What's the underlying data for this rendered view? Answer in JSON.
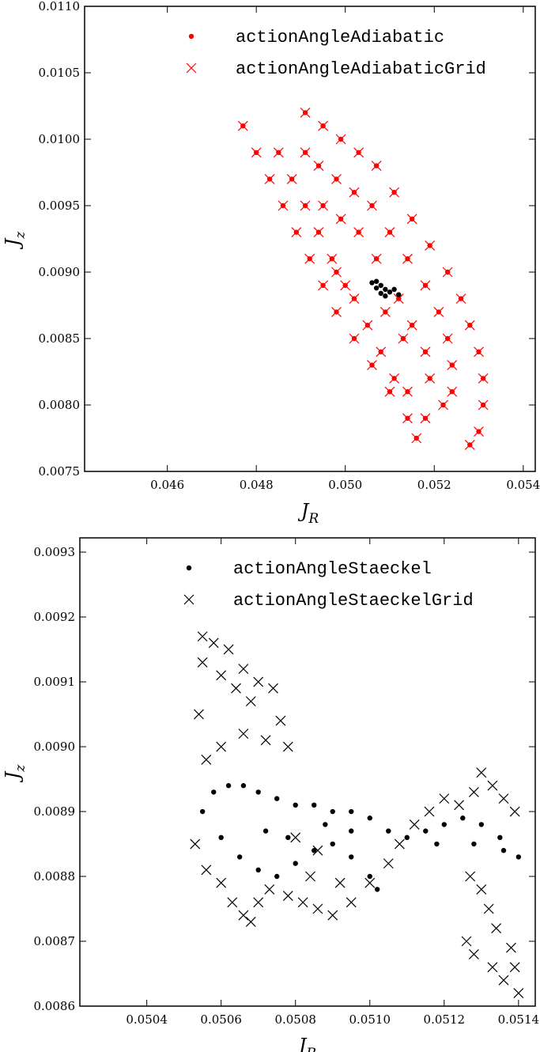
{
  "chart_data": [
    {
      "type": "scatter",
      "xlabel": [
        "J",
        "R"
      ],
      "ylabel": [
        "J",
        "z"
      ],
      "xlim": [
        0.04414,
        0.05427
      ],
      "ylim": [
        0.0075,
        0.011
      ],
      "xticks": [
        0.046,
        0.048,
        {
          "value": 0.05,
          "label": "0.050"
        },
        0.052,
        0.054
      ],
      "yticks": [
        0.0075,
        {
          "value": 0.008,
          "label": "0.0080"
        },
        0.0085,
        {
          "value": 0.009,
          "label": "0.0090"
        },
        0.0095,
        {
          "value": 0.01,
          "label": "0.0100"
        },
        0.0105,
        {
          "value": 0.011,
          "label": "0.0110"
        }
      ],
      "legend": "upper center",
      "series": [
        {
          "name": "actionAngleAdiabatic",
          "color": "#ff0000",
          "marker": "o",
          "x": [
            0.0477,
            0.048,
            0.0483,
            0.0486,
            0.0489,
            0.0492,
            0.0495,
            0.0498,
            0.0502,
            0.0506,
            0.051,
            0.0514,
            0.0516,
            0.0485,
            0.0488,
            0.0491,
            0.0494,
            0.0497,
            0.05,
            0.0491,
            0.0495,
            0.0499,
            0.0503,
            0.0507,
            0.0511,
            0.0515,
            0.0519,
            0.0523,
            0.0526,
            0.0528,
            0.053,
            0.0531,
            0.0531,
            0.053,
            0.0528,
            0.0491,
            0.0494,
            0.0498,
            0.0502,
            0.0506,
            0.051,
            0.0514,
            0.0518,
            0.0521,
            0.0523,
            0.0524,
            0.0524,
            0.0522,
            0.0518,
            0.0495,
            0.0499,
            0.0503,
            0.0507,
            0.0512,
            0.0515,
            0.0518,
            0.0519,
            0.0498,
            0.0502,
            0.0505,
            0.0508,
            0.0511,
            0.0514,
            0.0509,
            0.0513
          ],
          "y": [
            0.0101,
            0.0099,
            0.0097,
            0.0095,
            0.0093,
            0.0091,
            0.0089,
            0.0087,
            0.0085,
            0.0083,
            0.0081,
            0.0079,
            0.00775,
            0.0099,
            0.0097,
            0.0095,
            0.0093,
            0.0091,
            0.0089,
            0.0102,
            0.0101,
            0.01,
            0.0099,
            0.0098,
            0.0096,
            0.0094,
            0.0092,
            0.009,
            0.0088,
            0.0086,
            0.0084,
            0.0082,
            0.008,
            0.0078,
            0.0077,
            0.0099,
            0.0098,
            0.0097,
            0.0096,
            0.0095,
            0.0093,
            0.0091,
            0.0089,
            0.0087,
            0.0085,
            0.0083,
            0.0081,
            0.008,
            0.0079,
            0.0095,
            0.0094,
            0.0093,
            0.0091,
            0.0088,
            0.0086,
            0.0084,
            0.0082,
            0.009,
            0.0088,
            0.0086,
            0.0084,
            0.0082,
            0.0081,
            0.0087,
            0.0085
          ]
        },
        {
          "name": "actionAngleAdiabaticGrid",
          "color": "#ff0000",
          "marker": "x",
          "x": [
            0.0477,
            0.048,
            0.0483,
            0.0486,
            0.0489,
            0.0492,
            0.0495,
            0.0498,
            0.0502,
            0.0506,
            0.051,
            0.0514,
            0.0516,
            0.0485,
            0.0488,
            0.0491,
            0.0494,
            0.0497,
            0.05,
            0.0491,
            0.0495,
            0.0499,
            0.0503,
            0.0507,
            0.0511,
            0.0515,
            0.0519,
            0.0523,
            0.0526,
            0.0528,
            0.053,
            0.0531,
            0.0531,
            0.053,
            0.0528,
            0.0491,
            0.0494,
            0.0498,
            0.0502,
            0.0506,
            0.051,
            0.0514,
            0.0518,
            0.0521,
            0.0523,
            0.0524,
            0.0524,
            0.0522,
            0.0518,
            0.0495,
            0.0499,
            0.0503,
            0.0507,
            0.0512,
            0.0515,
            0.0518,
            0.0519,
            0.0498,
            0.0502,
            0.0505,
            0.0508,
            0.0511,
            0.0514,
            0.0509,
            0.0513
          ],
          "y": [
            0.0101,
            0.0099,
            0.0097,
            0.0095,
            0.0093,
            0.0091,
            0.0089,
            0.0087,
            0.0085,
            0.0083,
            0.0081,
            0.0079,
            0.00775,
            0.0099,
            0.0097,
            0.0095,
            0.0093,
            0.0091,
            0.0089,
            0.0102,
            0.0101,
            0.01,
            0.0099,
            0.0098,
            0.0096,
            0.0094,
            0.0092,
            0.009,
            0.0088,
            0.0086,
            0.0084,
            0.0082,
            0.008,
            0.0078,
            0.0077,
            0.0099,
            0.0098,
            0.0097,
            0.0096,
            0.0095,
            0.0093,
            0.0091,
            0.0089,
            0.0087,
            0.0085,
            0.0083,
            0.0081,
            0.008,
            0.0079,
            0.0095,
            0.0094,
            0.0093,
            0.0091,
            0.0088,
            0.0086,
            0.0084,
            0.0082,
            0.009,
            0.0088,
            0.0086,
            0.0084,
            0.0082,
            0.0081,
            0.0087,
            0.0085
          ]
        },
        {
          "color": "#000000",
          "marker": "o",
          "x": [
            0.0506,
            0.0507,
            0.0508,
            0.0509,
            0.051,
            0.0511,
            0.0512,
            0.0507,
            0.0508,
            0.0509
          ],
          "y": [
            0.00892,
            0.00888,
            0.00884,
            0.00882,
            0.00885,
            0.00887,
            0.00883,
            0.00893,
            0.0089,
            0.00887
          ]
        }
      ]
    },
    {
      "type": "scatter",
      "xlabel": [
        "J",
        "R"
      ],
      "ylabel": [
        "J",
        "z"
      ],
      "xlim": [
        0.05022,
        0.051445
      ],
      "ylim": [
        0.0086,
        0.009322
      ],
      "xticks": [
        0.0504,
        0.0506,
        0.0508,
        {
          "value": 0.051,
          "label": "0.0510"
        },
        0.0512,
        0.0514
      ],
      "yticks": [
        0.0086,
        0.0087,
        0.0088,
        0.0089,
        {
          "value": 0.009,
          "label": "0.0090"
        },
        0.0091,
        0.0092,
        0.0093
      ],
      "legend": "upper center",
      "series": [
        {
          "name": "actionAngleStaeckel",
          "color": "#000000",
          "marker": "o",
          "x": [
            0.05055,
            0.05058,
            0.05062,
            0.05066,
            0.0507,
            0.05075,
            0.0508,
            0.05085,
            0.0509,
            0.05095,
            0.051,
            0.05105,
            0.0511,
            0.05115,
            0.0512,
            0.05125,
            0.0513,
            0.05135,
            0.0514,
            0.0506,
            0.05065,
            0.0507,
            0.05075,
            0.0508,
            0.05085,
            0.0509,
            0.05095,
            0.051,
            0.05102,
            0.05072,
            0.05078,
            0.05088,
            0.05095,
            0.05118,
            0.05128,
            0.05136
          ],
          "y": [
            0.0089,
            0.00893,
            0.00894,
            0.00894,
            0.00893,
            0.00892,
            0.00891,
            0.00891,
            0.0089,
            0.0089,
            0.00889,
            0.00887,
            0.00886,
            0.00887,
            0.00888,
            0.00889,
            0.00888,
            0.00886,
            0.00883,
            0.00886,
            0.00883,
            0.00881,
            0.0088,
            0.00882,
            0.00884,
            0.00885,
            0.00883,
            0.0088,
            0.00878,
            0.00887,
            0.00886,
            0.00888,
            0.00887,
            0.00885,
            0.00885,
            0.00884
          ]
        },
        {
          "name": "actionAngleStaeckelGrid",
          "color": "#000000",
          "marker": "x",
          "x": [
            0.05055,
            0.05055,
            0.05058,
            0.0506,
            0.05062,
            0.05064,
            0.05066,
            0.05068,
            0.0507,
            0.05074,
            0.05076,
            0.05054,
            0.05056,
            0.0506,
            0.05066,
            0.05072,
            0.05078,
            0.05053,
            0.05056,
            0.0506,
            0.05063,
            0.05066,
            0.05068,
            0.0507,
            0.05073,
            0.05078,
            0.05082,
            0.05086,
            0.0509,
            0.05095,
            0.051,
            0.05105,
            0.05108,
            0.05112,
            0.05116,
            0.0512,
            0.05124,
            0.05128,
            0.0513,
            0.05133,
            0.05136,
            0.05139,
            0.05127,
            0.0513,
            0.05132,
            0.05134,
            0.05126,
            0.05128,
            0.05133,
            0.05136,
            0.05138,
            0.05139,
            0.0514,
            0.05084,
            0.05092,
            0.0508,
            0.05086
          ],
          "y": [
            0.00917,
            0.00913,
            0.00916,
            0.00911,
            0.00915,
            0.00909,
            0.00912,
            0.00907,
            0.0091,
            0.00909,
            0.00904,
            0.00905,
            0.00898,
            0.009,
            0.00902,
            0.00901,
            0.009,
            0.00885,
            0.00881,
            0.00879,
            0.00876,
            0.00874,
            0.00873,
            0.00876,
            0.00878,
            0.00877,
            0.00876,
            0.00875,
            0.00874,
            0.00876,
            0.00879,
            0.00882,
            0.00885,
            0.00888,
            0.0089,
            0.00892,
            0.00891,
            0.00893,
            0.00896,
            0.00894,
            0.00892,
            0.0089,
            0.0088,
            0.00878,
            0.00875,
            0.00872,
            0.0087,
            0.00868,
            0.00866,
            0.00864,
            0.00869,
            0.00866,
            0.00862,
            0.0088,
            0.00879,
            0.00886,
            0.00884
          ]
        }
      ]
    }
  ]
}
